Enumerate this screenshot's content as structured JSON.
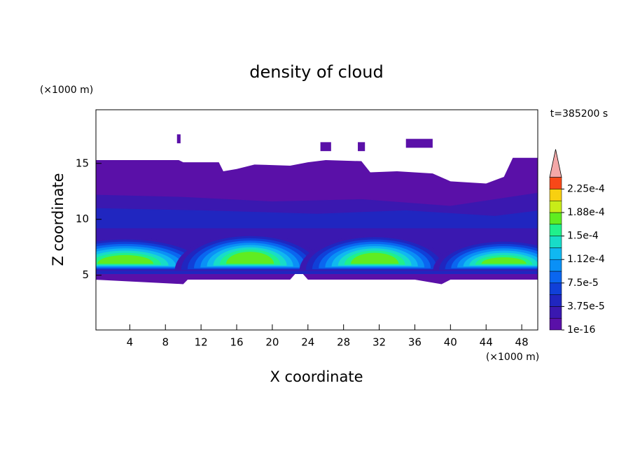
{
  "chart_data": {
    "type": "contour",
    "title": "density of cloud",
    "x_label": "X coordinate",
    "y_label": "Z coordinate",
    "x_unit": "(×1000 m)",
    "y_unit": "(×1000 m)",
    "time_label": "t=385200 s",
    "xlim": [
      0.2,
      49.8
    ],
    "ylim": [
      0.1,
      19.8
    ],
    "xticks": [
      4,
      8,
      12,
      16,
      20,
      24,
      28,
      32,
      36,
      40,
      44,
      48
    ],
    "yticks": [
      5,
      10,
      15
    ],
    "colorbar": {
      "levels": [
        1e-16,
        1.875e-05,
        3.75e-05,
        5.625e-05,
        7.5e-05,
        9.375e-05,
        0.0001125,
        0.00013125,
        0.00015,
        0.00016875,
        0.0001875,
        0.00020625,
        0.000225,
        0.00024375
      ],
      "colors": [
        "#5a10a8",
        "#3a18b0",
        "#2026c0",
        "#1040d8",
        "#0a66f0",
        "#0a90f6",
        "#10b8f0",
        "#18dcc8",
        "#20f08c",
        "#60ec20",
        "#c8ec18",
        "#f8d010",
        "#f84818"
      ],
      "extend_color": "#f4a8a8",
      "ticks": [
        1e-16,
        {
          "value": 3.75e-05,
          "label": "3.75e-5"
        },
        {
          "value": 7.5e-05,
          "label": "7.5e-5"
        },
        {
          "value": 0.0001125,
          "label": "1.12e-4"
        },
        {
          "value": 0.00015,
          "label": "1.5e-4"
        },
        {
          "value": 0.0001875,
          "label": "1.88e-4"
        },
        {
          "value": 0.000225,
          "label": "2.25e-4"
        }
      ]
    }
  }
}
